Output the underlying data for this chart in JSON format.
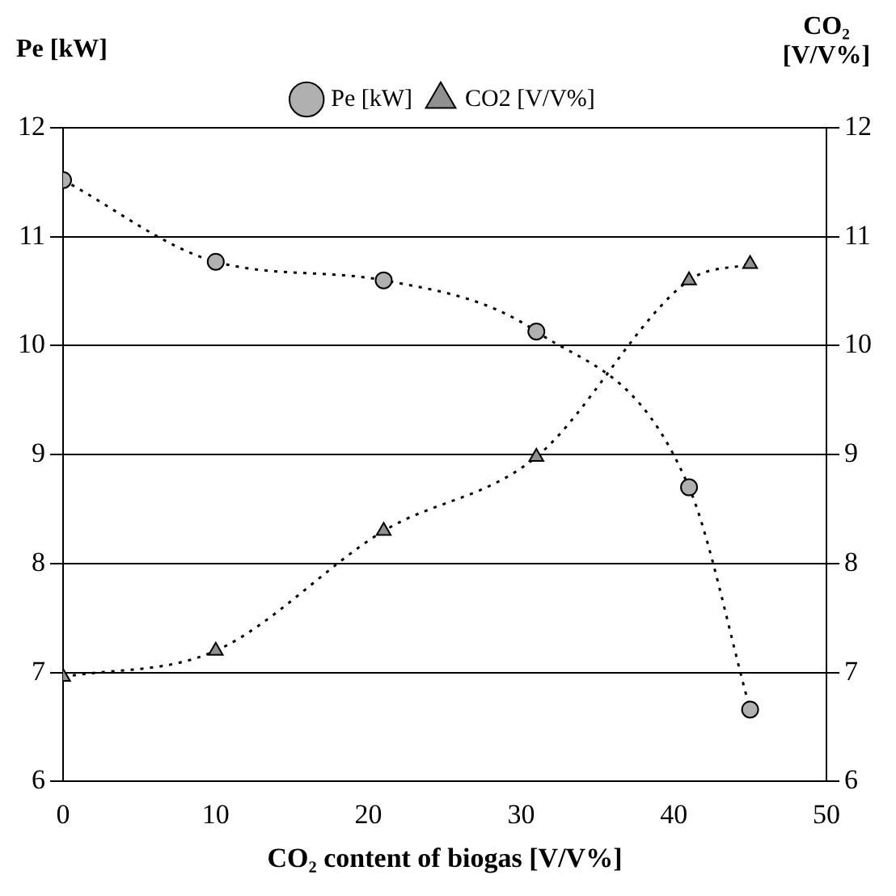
{
  "chart_data": {
    "type": "line",
    "xlabel": "CO₂ content of biogas [V/V%]",
    "ylabel": "Pe [kW]",
    "y2label": "CO₂ [V/V%]",
    "x": [
      0,
      10,
      21,
      31,
      41,
      45
    ],
    "series": [
      {
        "name": "Pe [kW]",
        "color": "#b0b0b0",
        "marker": "circle",
        "values": [
          11.52,
          10.77,
          10.6,
          10.13,
          8.7,
          6.66
        ]
      },
      {
        "name": "CO2 [V/V%]",
        "color": "#909090",
        "marker": "triangle",
        "axis": "y2",
        "values": [
          6.96,
          7.2,
          8.3,
          8.98,
          10.6,
          10.75
        ]
      }
    ],
    "xlim": [
      0,
      50
    ],
    "xticks": [
      0,
      10,
      20,
      30,
      40,
      50
    ],
    "ylim": [
      6,
      12
    ],
    "yticks": [
      6,
      7,
      8,
      9,
      10,
      11,
      12
    ],
    "y2lim": [
      6,
      12
    ],
    "y2ticks": [
      6,
      7,
      8,
      9,
      10,
      11,
      12
    ],
    "grid": "y",
    "legend": "top",
    "line_style": "dotted"
  }
}
